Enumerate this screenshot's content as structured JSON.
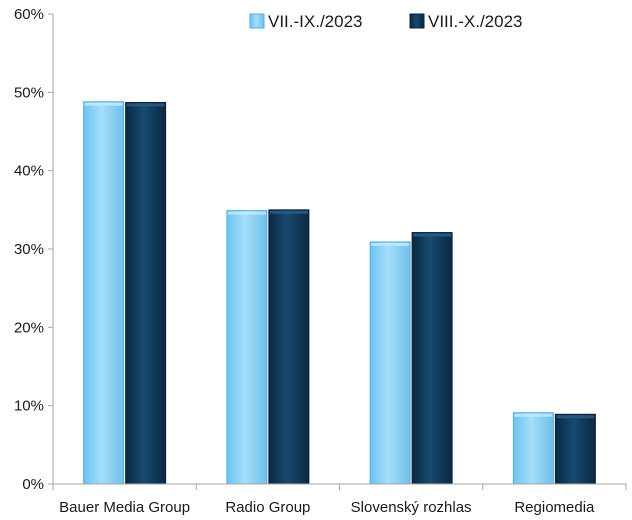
{
  "chart_data": {
    "type": "bar",
    "categories": [
      "Bauer Media Group",
      "Radio Group",
      "Slovenský rozhlas",
      "Regiomedia"
    ],
    "series": [
      {
        "name": "VII.-IX./2023",
        "values": [
          48.8,
          34.9,
          30.9,
          9.1
        ]
      },
      {
        "name": "VIII.-X./2023",
        "values": [
          48.7,
          35.0,
          32.1,
          8.9
        ]
      }
    ],
    "ylim": [
      0,
      60
    ],
    "yticks": [
      0,
      10,
      20,
      30,
      40,
      50,
      60
    ],
    "ytick_labels": [
      "0%",
      "10%",
      "20%",
      "30%",
      "40%",
      "50%",
      "60%"
    ],
    "grid": false,
    "legend_position": "top-right",
    "colors": {
      "series_0": "#8fd4f8",
      "series_0_dark": "#5aaedc",
      "series_1": "#0f3352",
      "series_1_dark": "#08223a",
      "axis": "#a6a6a6"
    },
    "title": "",
    "xlabel": "",
    "ylabel": ""
  }
}
